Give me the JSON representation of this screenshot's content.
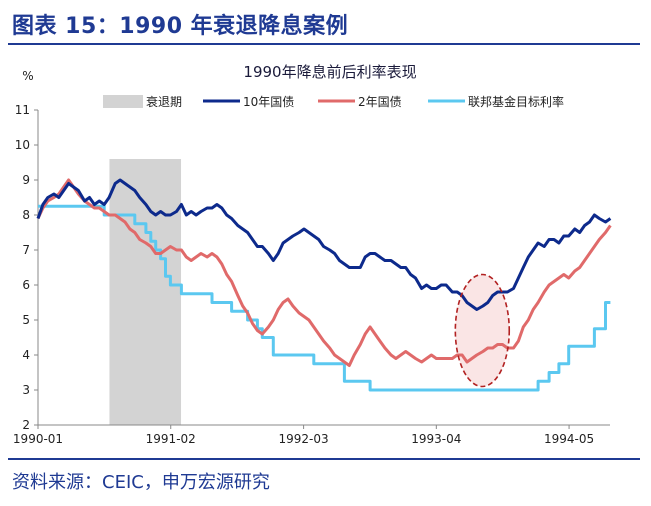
{
  "header": {
    "figure_title": "图表 15：1990 年衰退降息案例",
    "source": "资料来源：CEIC，申万宏源研究"
  },
  "colors": {
    "recession": "#d3d3d3",
    "treasury_10y": "#0d2a8c",
    "treasury_2y": "#e06a6a",
    "fed_target": "#5bc8f0",
    "highlight_ring": "#b22222",
    "header_blue": "#1f3a93"
  },
  "chart_data": {
    "type": "line",
    "title": "1990年降息前后利率表现",
    "ylabel": "%",
    "xlabel": "",
    "ylim": [
      2,
      11
    ],
    "yticks": [
      2,
      3,
      4,
      5,
      6,
      7,
      8,
      9,
      10,
      11
    ],
    "xlim": [
      1990.0,
      1994.667
    ],
    "xticks": [
      {
        "label": "1990-01",
        "value": 1990.0
      },
      {
        "label": "1991-02",
        "value": 1991.083
      },
      {
        "label": "1992-03",
        "value": 1992.167
      },
      {
        "label": "1993-04",
        "value": 1993.25
      },
      {
        "label": "1994-05",
        "value": 1994.333
      }
    ],
    "recession": {
      "name": "衰退期",
      "start": 1990.583,
      "end": 1991.167
    },
    "highlight": {
      "cx": 1993.625,
      "cy": 4.7,
      "rx": 0.22,
      "ry": 1.6
    },
    "series": [
      {
        "name": "10年国债",
        "key": "treasury_10y",
        "points": [
          [
            1990.0,
            7.9
          ],
          [
            1990.04,
            8.3
          ],
          [
            1990.08,
            8.5
          ],
          [
            1990.13,
            8.6
          ],
          [
            1990.17,
            8.5
          ],
          [
            1990.21,
            8.7
          ],
          [
            1990.25,
            8.9
          ],
          [
            1990.29,
            8.8
          ],
          [
            1990.33,
            8.7
          ],
          [
            1990.38,
            8.4
          ],
          [
            1990.42,
            8.5
          ],
          [
            1990.46,
            8.3
          ],
          [
            1990.5,
            8.4
          ],
          [
            1990.54,
            8.3
          ],
          [
            1990.58,
            8.5
          ],
          [
            1990.63,
            8.9
          ],
          [
            1990.67,
            9.0
          ],
          [
            1990.71,
            8.9
          ],
          [
            1990.75,
            8.8
          ],
          [
            1990.79,
            8.7
          ],
          [
            1990.83,
            8.5
          ],
          [
            1990.88,
            8.3
          ],
          [
            1990.92,
            8.1
          ],
          [
            1990.96,
            8.0
          ],
          [
            1991.0,
            8.1
          ],
          [
            1991.04,
            8.0
          ],
          [
            1991.08,
            8.0
          ],
          [
            1991.13,
            8.1
          ],
          [
            1991.17,
            8.3
          ],
          [
            1991.21,
            8.0
          ],
          [
            1991.25,
            8.1
          ],
          [
            1991.29,
            8.0
          ],
          [
            1991.33,
            8.1
          ],
          [
            1991.38,
            8.2
          ],
          [
            1991.42,
            8.2
          ],
          [
            1991.46,
            8.3
          ],
          [
            1991.5,
            8.2
          ],
          [
            1991.54,
            8.0
          ],
          [
            1991.58,
            7.9
          ],
          [
            1991.63,
            7.7
          ],
          [
            1991.67,
            7.6
          ],
          [
            1991.71,
            7.5
          ],
          [
            1991.75,
            7.3
          ],
          [
            1991.79,
            7.1
          ],
          [
            1991.83,
            7.1
          ],
          [
            1991.88,
            6.9
          ],
          [
            1991.92,
            6.7
          ],
          [
            1991.96,
            6.9
          ],
          [
            1992.0,
            7.2
          ],
          [
            1992.04,
            7.3
          ],
          [
            1992.08,
            7.4
          ],
          [
            1992.13,
            7.5
          ],
          [
            1992.17,
            7.6
          ],
          [
            1992.21,
            7.5
          ],
          [
            1992.25,
            7.4
          ],
          [
            1992.29,
            7.3
          ],
          [
            1992.33,
            7.1
          ],
          [
            1992.38,
            7.0
          ],
          [
            1992.42,
            6.9
          ],
          [
            1992.46,
            6.7
          ],
          [
            1992.5,
            6.6
          ],
          [
            1992.54,
            6.5
          ],
          [
            1992.58,
            6.5
          ],
          [
            1992.63,
            6.5
          ],
          [
            1992.67,
            6.8
          ],
          [
            1992.71,
            6.9
          ],
          [
            1992.75,
            6.9
          ],
          [
            1992.79,
            6.8
          ],
          [
            1992.83,
            6.7
          ],
          [
            1992.88,
            6.7
          ],
          [
            1992.92,
            6.6
          ],
          [
            1992.96,
            6.5
          ],
          [
            1993.0,
            6.5
          ],
          [
            1993.04,
            6.3
          ],
          [
            1993.08,
            6.2
          ],
          [
            1993.13,
            5.9
          ],
          [
            1993.17,
            6.0
          ],
          [
            1993.21,
            5.9
          ],
          [
            1993.25,
            5.9
          ],
          [
            1993.29,
            6.0
          ],
          [
            1993.33,
            6.0
          ],
          [
            1993.38,
            5.8
          ],
          [
            1993.42,
            5.8
          ],
          [
            1993.46,
            5.7
          ],
          [
            1993.5,
            5.5
          ],
          [
            1993.54,
            5.4
          ],
          [
            1993.58,
            5.3
          ],
          [
            1993.63,
            5.4
          ],
          [
            1993.67,
            5.5
          ],
          [
            1993.71,
            5.7
          ],
          [
            1993.75,
            5.8
          ],
          [
            1993.79,
            5.8
          ],
          [
            1993.83,
            5.8
          ],
          [
            1993.88,
            5.9
          ],
          [
            1993.92,
            6.2
          ],
          [
            1993.96,
            6.5
          ],
          [
            1994.0,
            6.8
          ],
          [
            1994.04,
            7.0
          ],
          [
            1994.08,
            7.2
          ],
          [
            1994.13,
            7.1
          ],
          [
            1994.17,
            7.3
          ],
          [
            1994.21,
            7.3
          ],
          [
            1994.25,
            7.2
          ],
          [
            1994.29,
            7.4
          ],
          [
            1994.33,
            7.4
          ],
          [
            1994.38,
            7.6
          ],
          [
            1994.42,
            7.5
          ],
          [
            1994.46,
            7.7
          ],
          [
            1994.5,
            7.8
          ],
          [
            1994.54,
            8.0
          ],
          [
            1994.58,
            7.9
          ],
          [
            1994.63,
            7.8
          ],
          [
            1994.67,
            7.9
          ]
        ]
      },
      {
        "name": "2年国债",
        "key": "treasury_2y",
        "points": [
          [
            1990.0,
            7.9
          ],
          [
            1990.04,
            8.2
          ],
          [
            1990.08,
            8.4
          ],
          [
            1990.13,
            8.5
          ],
          [
            1990.17,
            8.6
          ],
          [
            1990.21,
            8.8
          ],
          [
            1990.25,
            9.0
          ],
          [
            1990.29,
            8.8
          ],
          [
            1990.33,
            8.6
          ],
          [
            1990.38,
            8.4
          ],
          [
            1990.42,
            8.3
          ],
          [
            1990.46,
            8.2
          ],
          [
            1990.5,
            8.2
          ],
          [
            1990.54,
            8.1
          ],
          [
            1990.58,
            8.0
          ],
          [
            1990.63,
            8.0
          ],
          [
            1990.67,
            7.9
          ],
          [
            1990.71,
            7.8
          ],
          [
            1990.75,
            7.6
          ],
          [
            1990.79,
            7.5
          ],
          [
            1990.83,
            7.3
          ],
          [
            1990.88,
            7.2
          ],
          [
            1990.92,
            7.1
          ],
          [
            1990.96,
            6.9
          ],
          [
            1991.0,
            6.9
          ],
          [
            1991.04,
            7.0
          ],
          [
            1991.08,
            7.1
          ],
          [
            1991.13,
            7.0
          ],
          [
            1991.17,
            7.0
          ],
          [
            1991.21,
            6.8
          ],
          [
            1991.25,
            6.7
          ],
          [
            1991.29,
            6.8
          ],
          [
            1991.33,
            6.9
          ],
          [
            1991.38,
            6.8
          ],
          [
            1991.42,
            6.9
          ],
          [
            1991.46,
            6.8
          ],
          [
            1991.5,
            6.6
          ],
          [
            1991.54,
            6.3
          ],
          [
            1991.58,
            6.1
          ],
          [
            1991.63,
            5.7
          ],
          [
            1991.67,
            5.4
          ],
          [
            1991.71,
            5.2
          ],
          [
            1991.75,
            4.9
          ],
          [
            1991.79,
            4.7
          ],
          [
            1991.83,
            4.6
          ],
          [
            1991.88,
            4.8
          ],
          [
            1991.92,
            5.0
          ],
          [
            1991.96,
            5.3
          ],
          [
            1992.0,
            5.5
          ],
          [
            1992.04,
            5.6
          ],
          [
            1992.08,
            5.4
          ],
          [
            1992.13,
            5.2
          ],
          [
            1992.17,
            5.1
          ],
          [
            1992.21,
            5.0
          ],
          [
            1992.25,
            4.8
          ],
          [
            1992.29,
            4.6
          ],
          [
            1992.33,
            4.4
          ],
          [
            1992.38,
            4.2
          ],
          [
            1992.42,
            4.0
          ],
          [
            1992.46,
            3.9
          ],
          [
            1992.5,
            3.8
          ],
          [
            1992.54,
            3.7
          ],
          [
            1992.58,
            4.0
          ],
          [
            1992.63,
            4.3
          ],
          [
            1992.67,
            4.6
          ],
          [
            1992.71,
            4.8
          ],
          [
            1992.75,
            4.6
          ],
          [
            1992.79,
            4.4
          ],
          [
            1992.83,
            4.2
          ],
          [
            1992.88,
            4.0
          ],
          [
            1992.92,
            3.9
          ],
          [
            1992.96,
            4.0
          ],
          [
            1993.0,
            4.1
          ],
          [
            1993.04,
            4.0
          ],
          [
            1993.08,
            3.9
          ],
          [
            1993.13,
            3.8
          ],
          [
            1993.17,
            3.9
          ],
          [
            1993.21,
            4.0
          ],
          [
            1993.25,
            3.9
          ],
          [
            1993.29,
            3.9
          ],
          [
            1993.33,
            3.9
          ],
          [
            1993.38,
            3.9
          ],
          [
            1993.42,
            4.0
          ],
          [
            1993.46,
            4.0
          ],
          [
            1993.5,
            3.8
          ],
          [
            1993.54,
            3.9
          ],
          [
            1993.58,
            4.0
          ],
          [
            1993.63,
            4.1
          ],
          [
            1993.67,
            4.2
          ],
          [
            1993.71,
            4.2
          ],
          [
            1993.75,
            4.3
          ],
          [
            1993.79,
            4.3
          ],
          [
            1993.83,
            4.2
          ],
          [
            1993.88,
            4.2
          ],
          [
            1993.92,
            4.4
          ],
          [
            1993.96,
            4.8
          ],
          [
            1994.0,
            5.0
          ],
          [
            1994.04,
            5.3
          ],
          [
            1994.08,
            5.5
          ],
          [
            1994.13,
            5.8
          ],
          [
            1994.17,
            6.0
          ],
          [
            1994.21,
            6.1
          ],
          [
            1994.25,
            6.2
          ],
          [
            1994.29,
            6.3
          ],
          [
            1994.33,
            6.2
          ],
          [
            1994.38,
            6.4
          ],
          [
            1994.42,
            6.5
          ],
          [
            1994.46,
            6.7
          ],
          [
            1994.5,
            6.9
          ],
          [
            1994.54,
            7.1
          ],
          [
            1994.58,
            7.3
          ],
          [
            1994.63,
            7.5
          ],
          [
            1994.67,
            7.7
          ]
        ]
      },
      {
        "name": "联邦基金目标利率",
        "key": "fed_target",
        "step": true,
        "points": [
          [
            1990.0,
            8.25
          ],
          [
            1990.54,
            8.0
          ],
          [
            1990.79,
            7.75
          ],
          [
            1990.88,
            7.5
          ],
          [
            1990.92,
            7.25
          ],
          [
            1990.96,
            7.0
          ],
          [
            1991.0,
            6.75
          ],
          [
            1991.04,
            6.25
          ],
          [
            1991.08,
            6.0
          ],
          [
            1991.17,
            5.75
          ],
          [
            1991.42,
            5.5
          ],
          [
            1991.58,
            5.25
          ],
          [
            1991.71,
            5.0
          ],
          [
            1991.79,
            4.75
          ],
          [
            1991.83,
            4.5
          ],
          [
            1991.92,
            4.0
          ],
          [
            1992.25,
            3.75
          ],
          [
            1992.5,
            3.25
          ],
          [
            1992.71,
            3.0
          ],
          [
            1994.08,
            3.25
          ],
          [
            1994.17,
            3.5
          ],
          [
            1994.25,
            3.75
          ],
          [
            1994.33,
            4.25
          ],
          [
            1994.54,
            4.75
          ],
          [
            1994.63,
            5.5
          ],
          [
            1994.67,
            5.5
          ]
        ]
      }
    ]
  }
}
